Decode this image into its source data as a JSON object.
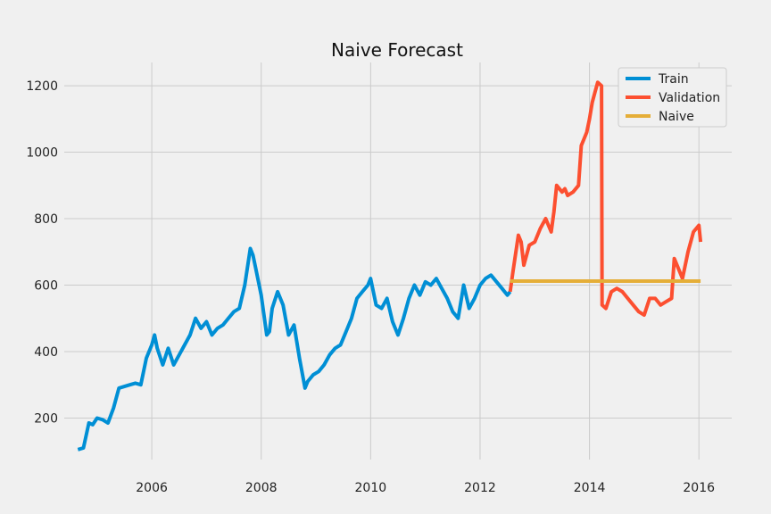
{
  "chart_data": {
    "type": "line",
    "title": "Naive Forecast",
    "xlabel": "",
    "ylabel": "",
    "xlim": [
      2004.4,
      2016.6
    ],
    "ylim": [
      75,
      1270
    ],
    "x_ticks": [
      2006,
      2008,
      2010,
      2012,
      2014,
      2016
    ],
    "x_tick_labels": [
      "2006",
      "2008",
      "2010",
      "2012",
      "2014",
      "2016"
    ],
    "y_ticks": [
      200,
      400,
      600,
      800,
      1000,
      1200
    ],
    "y_tick_labels": [
      "200",
      "400",
      "600",
      "800",
      "1000",
      "1200"
    ],
    "grid": true,
    "legend_position": "top-right",
    "series": [
      {
        "name": "Train",
        "color": "#008fd5",
        "x": [
          2004.65,
          2004.75,
          2004.85,
          2004.92,
          2005.0,
          2005.1,
          2005.2,
          2005.3,
          2005.4,
          2005.5,
          2005.6,
          2005.7,
          2005.8,
          2005.9,
          2006.0,
          2006.05,
          2006.1,
          2006.2,
          2006.3,
          2006.4,
          2006.5,
          2006.6,
          2006.7,
          2006.8,
          2006.9,
          2007.0,
          2007.1,
          2007.2,
          2007.3,
          2007.4,
          2007.5,
          2007.6,
          2007.7,
          2007.8,
          2007.85,
          2007.9,
          2008.0,
          2008.1,
          2008.15,
          2008.2,
          2008.3,
          2008.4,
          2008.5,
          2008.6,
          2008.7,
          2008.8,
          2008.85,
          2008.95,
          2009.05,
          2009.15,
          2009.25,
          2009.35,
          2009.45,
          2009.55,
          2009.65,
          2009.75,
          2009.85,
          2009.95,
          2010.0,
          2010.1,
          2010.2,
          2010.3,
          2010.4,
          2010.5,
          2010.6,
          2010.7,
          2010.8,
          2010.9,
          2011.0,
          2011.1,
          2011.2,
          2011.3,
          2011.4,
          2011.5,
          2011.6,
          2011.7,
          2011.8,
          2011.9,
          2012.0,
          2012.1,
          2012.2,
          2012.3,
          2012.4,
          2012.5,
          2012.55
        ],
        "values": [
          105,
          110,
          185,
          180,
          200,
          195,
          185,
          230,
          290,
          295,
          300,
          305,
          300,
          380,
          420,
          450,
          410,
          360,
          410,
          360,
          390,
          420,
          450,
          500,
          470,
          490,
          450,
          470,
          480,
          500,
          520,
          530,
          600,
          710,
          690,
          650,
          570,
          450,
          460,
          530,
          580,
          540,
          450,
          480,
          380,
          290,
          310,
          330,
          340,
          360,
          390,
          410,
          420,
          460,
          500,
          560,
          580,
          600,
          620,
          540,
          530,
          560,
          490,
          450,
          500,
          560,
          600,
          570,
          610,
          600,
          620,
          590,
          560,
          520,
          500,
          600,
          530,
          560,
          600,
          620,
          630,
          610,
          590,
          570,
          580
        ]
      },
      {
        "name": "Validation",
        "color": "#fc4f30",
        "x": [
          2012.55,
          2012.6,
          2012.7,
          2012.75,
          2012.8,
          2012.85,
          2012.9,
          2013.0,
          2013.1,
          2013.2,
          2013.3,
          2013.35,
          2013.4,
          2013.5,
          2013.55,
          2013.6,
          2013.7,
          2013.8,
          2013.85,
          2013.9,
          2013.95,
          2014.0,
          2014.05,
          2014.1,
          2014.15,
          2014.22,
          2014.23,
          2014.3,
          2014.4,
          2014.5,
          2014.6,
          2014.7,
          2014.8,
          2014.9,
          2015.0,
          2015.1,
          2015.2,
          2015.3,
          2015.4,
          2015.5,
          2015.55,
          2015.6,
          2015.7,
          2015.8,
          2015.9,
          2016.0,
          2016.03
        ],
        "values": [
          580,
          640,
          750,
          730,
          660,
          690,
          720,
          730,
          770,
          800,
          760,
          820,
          900,
          880,
          890,
          870,
          880,
          900,
          1020,
          1040,
          1060,
          1100,
          1150,
          1180,
          1210,
          1200,
          540,
          530,
          580,
          590,
          580,
          560,
          540,
          520,
          510,
          560,
          560,
          540,
          550,
          560,
          680,
          660,
          620,
          700,
          760,
          780,
          730
        ]
      },
      {
        "name": "Naive",
        "color": "#e5ae38",
        "x": [
          2012.55,
          2016.03
        ],
        "values": [
          612,
          612
        ]
      }
    ]
  }
}
